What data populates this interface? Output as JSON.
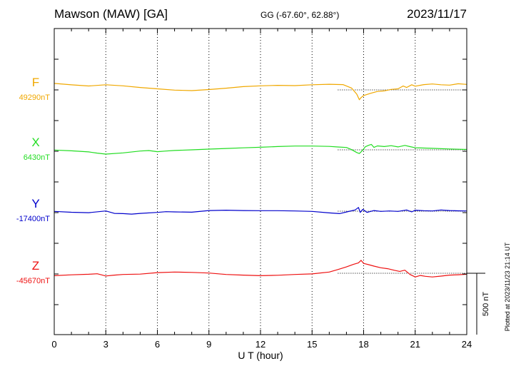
{
  "header": {
    "station": "Mawson (MAW)  [GA]",
    "coords": "GG (-67.60°,  62.88°)",
    "date": "2023/11/17"
  },
  "footer": {
    "plotted": "Plotted at 2023/11/23 21:14 UT"
  },
  "colors": {
    "F": "#f0a800",
    "X": "#22dd22",
    "Y": "#0000cc",
    "Z": "#ee1111"
  },
  "chart_data": {
    "type": "line",
    "title": "Mawson (MAW)  [GA]",
    "xlabel": "U T (hour)",
    "ylabel": "",
    "xlim": [
      0,
      24
    ],
    "x_ticks": [
      0,
      3,
      6,
      9,
      12,
      15,
      18,
      21,
      24
    ],
    "x_tick_labels": [
      "0",
      "3",
      "6",
      "9",
      "12",
      "15",
      "18",
      "21",
      "24"
    ],
    "grid": true,
    "scale_bar": {
      "value": 500,
      "label": "500 nT"
    },
    "series": [
      {
        "name": "F",
        "baseline_label": "49290nT",
        "baseline": 49290,
        "points": [
          [
            0,
            49343
          ],
          [
            1,
            49331
          ],
          [
            2,
            49322
          ],
          [
            3,
            49332
          ],
          [
            4,
            49323
          ],
          [
            5,
            49310
          ],
          [
            6,
            49299
          ],
          [
            7,
            49288
          ],
          [
            8,
            49284
          ],
          [
            9,
            49293
          ],
          [
            10,
            49304
          ],
          [
            11,
            49317
          ],
          [
            12,
            49323
          ],
          [
            13,
            49327
          ],
          [
            14,
            49325
          ],
          [
            15,
            49332
          ],
          [
            16,
            49336
          ],
          [
            16.8,
            49333
          ],
          [
            17.3,
            49305
          ],
          [
            17.6,
            49255
          ],
          [
            17.75,
            49210
          ],
          [
            17.85,
            49227
          ],
          [
            18,
            49244
          ],
          [
            18.4,
            49262
          ],
          [
            18.8,
            49277
          ],
          [
            19.2,
            49282
          ],
          [
            19.6,
            49294
          ],
          [
            20,
            49299
          ],
          [
            20.3,
            49322
          ],
          [
            20.5,
            49310
          ],
          [
            20.8,
            49332
          ],
          [
            21,
            49320
          ],
          [
            21.5,
            49333
          ],
          [
            22,
            49338
          ],
          [
            22.5,
            49332
          ],
          [
            23,
            49329
          ],
          [
            23.5,
            49340
          ],
          [
            24,
            49335
          ]
        ]
      },
      {
        "name": "X",
        "baseline_label": "6430nT",
        "baseline": 6430,
        "points": [
          [
            0,
            6428
          ],
          [
            1,
            6422
          ],
          [
            2,
            6413
          ],
          [
            2.5,
            6403
          ],
          [
            3,
            6395
          ],
          [
            4,
            6405
          ],
          [
            5,
            6420
          ],
          [
            5.5,
            6424
          ],
          [
            6,
            6415
          ],
          [
            6.5,
            6420
          ],
          [
            7,
            6425
          ],
          [
            8,
            6430
          ],
          [
            9,
            6436
          ],
          [
            10,
            6441
          ],
          [
            11,
            6446
          ],
          [
            12,
            6451
          ],
          [
            13,
            6457
          ],
          [
            14,
            6461
          ],
          [
            15,
            6461
          ],
          [
            16,
            6458
          ],
          [
            16.5,
            6453
          ],
          [
            17,
            6449
          ],
          [
            17.3,
            6432
          ],
          [
            17.6,
            6408
          ],
          [
            17.75,
            6400
          ],
          [
            17.9,
            6420
          ],
          [
            18.1,
            6455
          ],
          [
            18.3,
            6467
          ],
          [
            18.45,
            6474
          ],
          [
            18.6,
            6450
          ],
          [
            18.8,
            6462
          ],
          [
            19.2,
            6457
          ],
          [
            19.6,
            6464
          ],
          [
            20,
            6454
          ],
          [
            20.4,
            6466
          ],
          [
            20.7,
            6456
          ],
          [
            21,
            6447
          ],
          [
            22,
            6442
          ],
          [
            23,
            6437
          ],
          [
            24,
            6433
          ]
        ]
      },
      {
        "name": "Y",
        "baseline_label": "-17400nT",
        "baseline": -17400,
        "points": [
          [
            0,
            -17402
          ],
          [
            1,
            -17409
          ],
          [
            2,
            -17412
          ],
          [
            3,
            -17398
          ],
          [
            3.5,
            -17418
          ],
          [
            4,
            -17420
          ],
          [
            4.5,
            -17424
          ],
          [
            5,
            -17418
          ],
          [
            6,
            -17410
          ],
          [
            6.5,
            -17404
          ],
          [
            7,
            -17406
          ],
          [
            8,
            -17408
          ],
          [
            9,
            -17395
          ],
          [
            10,
            -17392
          ],
          [
            11,
            -17395
          ],
          [
            12,
            -17396
          ],
          [
            13,
            -17396
          ],
          [
            14,
            -17398
          ],
          [
            15,
            -17402
          ],
          [
            16,
            -17414
          ],
          [
            16.6,
            -17420
          ],
          [
            17.2,
            -17400
          ],
          [
            17.5,
            -17390
          ],
          [
            17.7,
            -17370
          ],
          [
            17.8,
            -17410
          ],
          [
            17.95,
            -17385
          ],
          [
            18.2,
            -17410
          ],
          [
            18.6,
            -17395
          ],
          [
            19,
            -17402
          ],
          [
            19.5,
            -17398
          ],
          [
            20,
            -17402
          ],
          [
            20.5,
            -17390
          ],
          [
            20.8,
            -17406
          ],
          [
            21,
            -17392
          ],
          [
            21.5,
            -17396
          ],
          [
            22,
            -17398
          ],
          [
            22.5,
            -17390
          ],
          [
            23,
            -17395
          ],
          [
            23.5,
            -17397
          ],
          [
            24,
            -17398
          ]
        ]
      },
      {
        "name": "Z",
        "baseline_label": "-45670nT",
        "baseline": -45670,
        "points": [
          [
            0,
            -45690
          ],
          [
            1,
            -45683
          ],
          [
            2,
            -45678
          ],
          [
            2.5,
            -45674
          ],
          [
            3,
            -45692
          ],
          [
            3.5,
            -45685
          ],
          [
            4,
            -45680
          ],
          [
            5,
            -45677
          ],
          [
            6,
            -45665
          ],
          [
            7,
            -45660
          ],
          [
            8,
            -45663
          ],
          [
            9,
            -45668
          ],
          [
            10,
            -45680
          ],
          [
            11,
            -45685
          ],
          [
            12,
            -45690
          ],
          [
            13,
            -45686
          ],
          [
            14,
            -45680
          ],
          [
            15,
            -45675
          ],
          [
            16,
            -45660
          ],
          [
            16.5,
            -45640
          ],
          [
            17,
            -45618
          ],
          [
            17.4,
            -45598
          ],
          [
            17.7,
            -45585
          ],
          [
            17.85,
            -45565
          ],
          [
            18,
            -45590
          ],
          [
            18.3,
            -45600
          ],
          [
            18.6,
            -45612
          ],
          [
            19,
            -45625
          ],
          [
            19.4,
            -45633
          ],
          [
            19.8,
            -45646
          ],
          [
            20.1,
            -45655
          ],
          [
            20.4,
            -45645
          ],
          [
            20.7,
            -45680
          ],
          [
            21,
            -45700
          ],
          [
            21.3,
            -45688
          ],
          [
            21.6,
            -45695
          ],
          [
            22,
            -45700
          ],
          [
            22.5,
            -45693
          ],
          [
            23,
            -45685
          ],
          [
            23.5,
            -45682
          ],
          [
            24,
            -45678
          ]
        ]
      }
    ]
  }
}
